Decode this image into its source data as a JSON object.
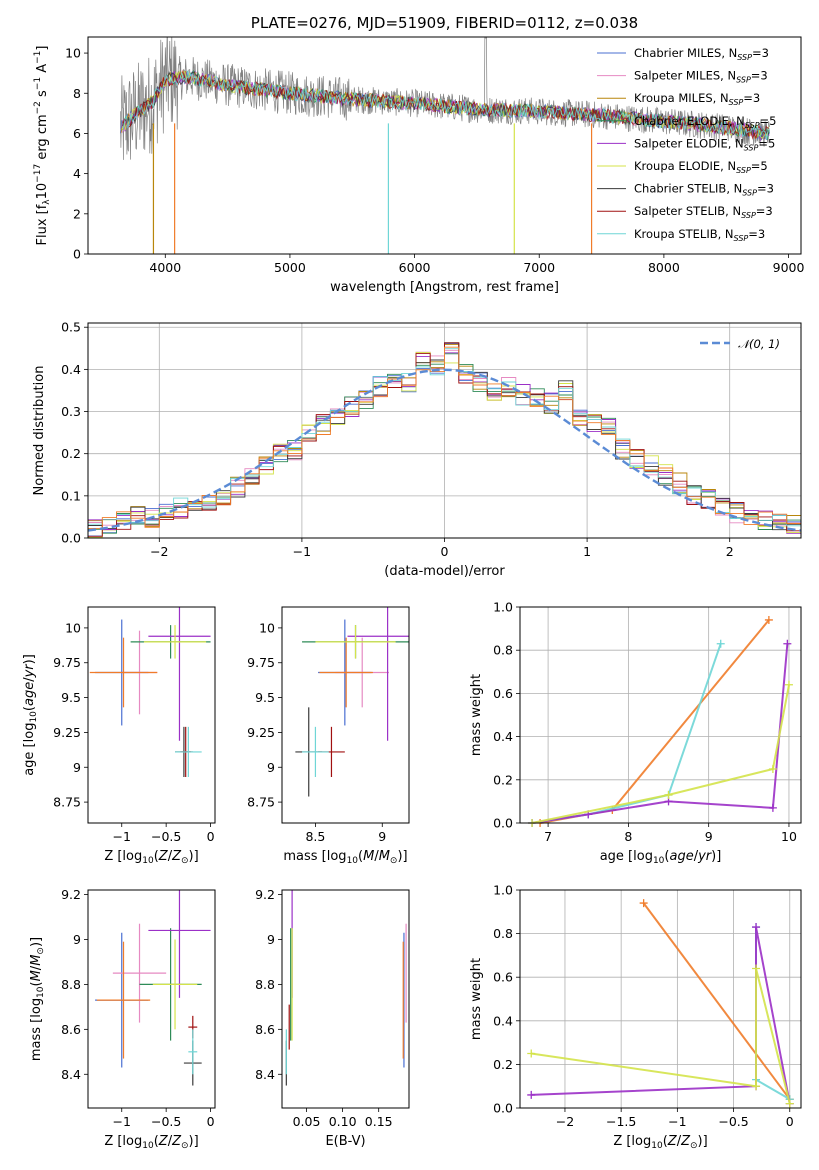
{
  "chart_data": [
    {
      "id": "spectrum",
      "type": "line",
      "title": "PLATE=0276, MJD=51909, FIBERID=0112, z=0.038",
      "xlabel": "wavelength [Angstrom, rest frame]",
      "ylabel_html": "Flux [f<tspan font-size='9' dy='3'>λ</tspan><tspan dy='-3'>10</tspan><tspan font-size='9' dy='-6'>−17</tspan><tspan dy='6'> erg cm</tspan><tspan font-size='9' dy='-6'>−2</tspan><tspan dy='6'> s</tspan><tspan font-size='9' dy='-6'>−1</tspan><tspan dy='6'> A</tspan><tspan font-size='9' dy='-6'>−1</tspan><tspan dy='6'>]</tspan>",
      "xlim": [
        3380,
        9100
      ],
      "ylim": [
        0,
        10.8
      ],
      "xticks": [
        4000,
        5000,
        6000,
        7000,
        8000,
        9000
      ],
      "yticks": [
        0,
        2,
        4,
        6,
        8,
        10
      ],
      "legend_position": "upper-right",
      "observed_color": "#808080",
      "series": [
        {
          "name": "Chabrier MILES",
          "nssp": "3",
          "color": "#4a6fd2"
        },
        {
          "name": "Salpeter MILES",
          "nssp": "3",
          "color": "#e68ac2"
        },
        {
          "name": "Kroupa MILES",
          "nssp": "3",
          "color": "#b8860b"
        },
        {
          "name": "Chabrier ELODIE",
          "nssp": "5",
          "color": "#2e8b57"
        },
        {
          "name": "Salpeter ELODIE",
          "nssp": "5",
          "color": "#9b30c7"
        },
        {
          "name": "Kroupa ELODIE",
          "nssp": "5",
          "color": "#d4e34a"
        },
        {
          "name": "Chabrier STELIB",
          "nssp": "3",
          "color": "#3a3a3a"
        },
        {
          "name": "Salpeter STELIB",
          "nssp": "3",
          "color": "#a01010"
        },
        {
          "name": "Kroupa STELIB",
          "nssp": "3",
          "color": "#6fd6d6"
        }
      ],
      "model_continuum": {
        "x": [
          3650,
          3750,
          3900,
          4000,
          4200,
          4500,
          5000,
          5500,
          6000,
          6500,
          7000,
          7500,
          8000,
          8500,
          8800
        ],
        "y": [
          6.3,
          6.9,
          7.6,
          8.7,
          8.8,
          8.4,
          8.0,
          7.7,
          7.5,
          7.2,
          7.1,
          6.9,
          6.6,
          6.3,
          6.0
        ]
      },
      "dropouts": [
        3905,
        4075,
        5790,
        6800,
        7420
      ]
    },
    {
      "id": "residuals",
      "type": "line",
      "xlabel": "(data-model)/error",
      "ylabel": "Normed distribution",
      "xlim": [
        -2.5,
        2.5
      ],
      "ylim": [
        0,
        0.51
      ],
      "xticks": [
        -2,
        -1,
        0,
        1,
        2
      ],
      "yticks": [
        0.0,
        0.1,
        0.2,
        0.3,
        0.4,
        0.5
      ],
      "grid": true,
      "legend_position": "upper-right",
      "normal_label": "𝒩(0, 1)",
      "normal_color": "#5b8bd5",
      "bins": [
        -2.5,
        -2.4,
        -2.3,
        -2.2,
        -2.1,
        -2.0,
        -1.9,
        -1.8,
        -1.7,
        -1.6,
        -1.5,
        -1.4,
        -1.3,
        -1.2,
        -1.1,
        -1.0,
        -0.9,
        -0.8,
        -0.7,
        -0.6,
        -0.5,
        -0.4,
        -0.3,
        -0.2,
        -0.1,
        0.0,
        0.1,
        0.2,
        0.3,
        0.4,
        0.5,
        0.6,
        0.7,
        0.8,
        0.9,
        1.0,
        1.1,
        1.2,
        1.3,
        1.4,
        1.5,
        1.6,
        1.7,
        1.8,
        1.9,
        2.0,
        2.1,
        2.2,
        2.3,
        2.4
      ],
      "hist_values": [
        0.02,
        0.03,
        0.04,
        0.05,
        0.05,
        0.06,
        0.07,
        0.08,
        0.09,
        0.1,
        0.12,
        0.15,
        0.17,
        0.2,
        0.21,
        0.25,
        0.27,
        0.29,
        0.31,
        0.33,
        0.36,
        0.38,
        0.37,
        0.42,
        0.41,
        0.44,
        0.39,
        0.37,
        0.35,
        0.36,
        0.34,
        0.33,
        0.32,
        0.35,
        0.29,
        0.27,
        0.26,
        0.21,
        0.19,
        0.17,
        0.15,
        0.13,
        0.1,
        0.09,
        0.07,
        0.06,
        0.05,
        0.04,
        0.04,
        0.03
      ]
    },
    {
      "id": "age-vs-Z",
      "type": "scatter",
      "xlabel_html": "Z [log<tspan font-size='9' dy='3'>10</tspan><tspan dy='-3'>(</tspan><tspan font-style='italic'>Z</tspan>/<tspan font-style='italic'>Z</tspan><tspan font-size='9' dy='3'>⊙</tspan><tspan dy='-3'>)]</tspan>",
      "ylabel_html": "age  [log<tspan font-size='9' dy='3'>10</tspan><tspan dy='-3'>(</tspan><tspan font-style='italic'>age</tspan>/<tspan font-style='italic'>yr</tspan>)]",
      "xlim": [
        -1.38,
        0.05
      ],
      "ylim": [
        8.6,
        10.15
      ],
      "xticks": [
        -1.0,
        -0.5,
        0.0
      ],
      "yticks": [
        8.75,
        9.0,
        9.25,
        9.5,
        9.75,
        10.0
      ],
      "points": [
        {
          "x": -1.0,
          "y": 9.68,
          "xerr": 0.3,
          "yerr": 0.38,
          "color": "#4a6fd2"
        },
        {
          "x": -0.8,
          "y": 9.68,
          "xerr": 0.2,
          "yerr": 0.3,
          "color": "#e68ac2"
        },
        {
          "x": -0.98,
          "y": 9.68,
          "xerr": 0.38,
          "yerr": 0.25,
          "color": "#f07c2a"
        },
        {
          "x": -0.45,
          "y": 9.9,
          "xerr": 0.45,
          "yerr": 0.12,
          "color": "#2e8b57"
        },
        {
          "x": -0.35,
          "y": 9.94,
          "xerr": 0.35,
          "yerr": 0.75,
          "color": "#9b30c7"
        },
        {
          "x": -0.4,
          "y": 9.9,
          "xerr": 0.35,
          "yerr": 0.12,
          "color": "#d4e34a"
        },
        {
          "x": -0.3,
          "y": 9.11,
          "xerr": 0.1,
          "yerr": 0.18,
          "color": "#3a3a3a"
        },
        {
          "x": -0.28,
          "y": 9.11,
          "xerr": 0.06,
          "yerr": 0.18,
          "color": "#a01010"
        },
        {
          "x": -0.25,
          "y": 9.11,
          "xerr": 0.15,
          "yerr": 0.18,
          "color": "#6fd6d6"
        }
      ]
    },
    {
      "id": "age-vs-mass",
      "type": "scatter",
      "xlabel_html": "mass [log<tspan font-size='9' dy='3'>10</tspan><tspan dy='-3'>(</tspan><tspan font-style='italic'>M</tspan>/<tspan font-style='italic'>M</tspan><tspan font-size='9' dy='3'>⊙</tspan><tspan dy='-3'>)]</tspan>",
      "xlim": [
        8.25,
        9.2
      ],
      "ylim": [
        8.6,
        10.15
      ],
      "xticks": [
        8.5,
        9.0
      ],
      "yticks": [
        8.75,
        9.0,
        9.25,
        9.5,
        9.75,
        10.0
      ],
      "points": [
        {
          "x": 8.72,
          "y": 9.68,
          "xerr": 0.2,
          "yerr": 0.38,
          "color": "#4a6fd2"
        },
        {
          "x": 8.85,
          "y": 9.68,
          "xerr": 0.2,
          "yerr": 0.25,
          "color": "#e68ac2"
        },
        {
          "x": 8.73,
          "y": 9.68,
          "xerr": 0.2,
          "yerr": 0.25,
          "color": "#f07c2a"
        },
        {
          "x": 8.8,
          "y": 9.9,
          "xerr": 0.4,
          "yerr": 0.12,
          "color": "#2e8b57"
        },
        {
          "x": 9.04,
          "y": 9.94,
          "xerr": 0.3,
          "yerr": 0.75,
          "color": "#9b30c7"
        },
        {
          "x": 8.8,
          "y": 9.9,
          "xerr": 0.3,
          "yerr": 0.12,
          "color": "#d4e34a"
        },
        {
          "x": 8.45,
          "y": 9.11,
          "xerr": 0.1,
          "yerr": 0.32,
          "color": "#3a3a3a"
        },
        {
          "x": 8.62,
          "y": 9.11,
          "xerr": 0.1,
          "yerr": 0.18,
          "color": "#a01010"
        },
        {
          "x": 8.5,
          "y": 9.11,
          "xerr": 0.1,
          "yerr": 0.18,
          "color": "#6fd6d6"
        }
      ]
    },
    {
      "id": "massweight-vs-age",
      "type": "line",
      "xlabel_html": "age  [log<tspan font-size='9' dy='3'>10</tspan><tspan dy='-3'>(</tspan><tspan font-style='italic'>age</tspan>/<tspan font-style='italic'>yr</tspan>)]",
      "ylabel": "mass weight",
      "xlim": [
        6.65,
        10.15
      ],
      "ylim": [
        0,
        1.0
      ],
      "xticks": [
        7,
        8,
        9,
        10
      ],
      "yticks": [
        0.0,
        0.2,
        0.4,
        0.6,
        0.8,
        1.0
      ],
      "grid": true,
      "series": [
        {
          "x": [
            6.9,
            7.8,
            9.75
          ],
          "y": [
            0.0,
            0.06,
            0.94
          ],
          "color": "#f07c2a"
        },
        {
          "x": [
            6.8,
            7.5,
            8.5,
            9.15
          ],
          "y": [
            0.0,
            0.04,
            0.13,
            0.83
          ],
          "color": "#6fd6d6"
        },
        {
          "x": [
            6.8,
            7.5,
            8.5,
            9.8,
            9.98
          ],
          "y": [
            0.0,
            0.04,
            0.1,
            0.07,
            0.83
          ],
          "color": "#9b30c7"
        },
        {
          "x": [
            6.8,
            8.5,
            9.8,
            10.0
          ],
          "y": [
            0.0,
            0.13,
            0.25,
            0.64
          ],
          "color": "#d4e34a"
        }
      ]
    },
    {
      "id": "mass-vs-Z",
      "type": "scatter",
      "xlabel_html": "Z [log<tspan font-size='9' dy='3'>10</tspan><tspan dy='-3'>(</tspan><tspan font-style='italic'>Z</tspan>/<tspan font-style='italic'>Z</tspan><tspan font-size='9' dy='3'>⊙</tspan><tspan dy='-3'>)]</tspan>",
      "ylabel_html": "mass [log<tspan font-size='9' dy='3'>10</tspan><tspan dy='-3'>(</tspan><tspan font-style='italic'>M</tspan>/<tspan font-style='italic'>M</tspan><tspan font-size='9' dy='3'>⊙</tspan><tspan dy='-3'>)]</tspan>",
      "xlim": [
        -1.38,
        0.05
      ],
      "ylim": [
        8.25,
        9.22
      ],
      "xticks": [
        -1.0,
        -0.5,
        0.0
      ],
      "yticks": [
        8.4,
        8.6,
        8.8,
        9.0,
        9.2
      ],
      "points": [
        {
          "x": -1.0,
          "y": 8.73,
          "xerr": 0.3,
          "yerr": 0.3,
          "color": "#4a6fd2"
        },
        {
          "x": -0.8,
          "y": 8.85,
          "xerr": 0.3,
          "yerr": 0.22,
          "color": "#e68ac2"
        },
        {
          "x": -0.98,
          "y": 8.73,
          "xerr": 0.3,
          "yerr": 0.26,
          "color": "#f07c2a"
        },
        {
          "x": -0.45,
          "y": 8.8,
          "xerr": 0.35,
          "yerr": 0.25,
          "color": "#2e8b57"
        },
        {
          "x": -0.35,
          "y": 9.04,
          "xerr": 0.35,
          "yerr": 0.3,
          "color": "#9b30c7"
        },
        {
          "x": -0.4,
          "y": 8.8,
          "xerr": 0.25,
          "yerr": 0.2,
          "color": "#d4e34a"
        },
        {
          "x": -0.2,
          "y": 8.45,
          "xerr": 0.1,
          "yerr": 0.1,
          "color": "#3a3a3a"
        },
        {
          "x": -0.2,
          "y": 8.61,
          "xerr": 0.05,
          "yerr": 0.05,
          "color": "#a01010"
        },
        {
          "x": -0.2,
          "y": 8.5,
          "xerr": 0.05,
          "yerr": 0.1,
          "color": "#6fd6d6"
        }
      ]
    },
    {
      "id": "mass-vs-ebv",
      "type": "scatter",
      "xlabel": "E(B-V)",
      "xlim": [
        0.016,
        0.192
      ],
      "ylim": [
        8.25,
        9.22
      ],
      "xticks": [
        0.05,
        0.1,
        0.15
      ],
      "xtick_labels": [
        "0.05",
        "0.10",
        "0.15"
      ],
      "yticks": [
        8.4,
        8.6,
        8.8,
        9.0,
        9.2
      ],
      "points": [
        {
          "x": 0.185,
          "y": 8.73,
          "yerr": 0.3,
          "color": "#4a6fd2"
        },
        {
          "x": 0.188,
          "y": 8.85,
          "yerr": 0.22,
          "color": "#e68ac2"
        },
        {
          "x": 0.184,
          "y": 8.73,
          "yerr": 0.26,
          "color": "#f07c2a"
        },
        {
          "x": 0.028,
          "y": 8.8,
          "yerr": 0.25,
          "color": "#2e8b57"
        },
        {
          "x": 0.03,
          "y": 9.04,
          "yerr": 0.3,
          "color": "#9b30c7"
        },
        {
          "x": 0.03,
          "y": 8.8,
          "yerr": 0.25,
          "color": "#d4e34a"
        },
        {
          "x": 0.022,
          "y": 8.45,
          "yerr": 0.1,
          "color": "#3a3a3a"
        },
        {
          "x": 0.026,
          "y": 8.61,
          "yerr": 0.1,
          "color": "#a01010"
        },
        {
          "x": 0.022,
          "y": 8.5,
          "yerr": 0.1,
          "color": "#6fd6d6"
        }
      ]
    },
    {
      "id": "massweight-vs-Z",
      "type": "line",
      "xlabel_html": "Z [log<tspan font-size='9' dy='3'>10</tspan><tspan dy='-3'>(</tspan><tspan font-style='italic'>Z</tspan>/<tspan font-style='italic'>Z</tspan><tspan font-size='9' dy='3'>⊙</tspan><tspan dy='-3'>)]</tspan>",
      "ylabel": "mass weight",
      "xlim": [
        -2.4,
        0.1
      ],
      "ylim": [
        0,
        1.0
      ],
      "xticks": [
        -2.0,
        -1.5,
        -1.0,
        -0.5,
        0.0
      ],
      "yticks": [
        0.0,
        0.2,
        0.4,
        0.6,
        0.8,
        1.0
      ],
      "grid": true,
      "series": [
        {
          "x": [
            -1.3,
            0.0
          ],
          "y": [
            0.94,
            0.04
          ],
          "color": "#f07c2a"
        },
        {
          "x": [
            -0.3,
            -0.3,
            0.0
          ],
          "y": [
            0.83,
            0.13,
            0.04
          ],
          "color": "#6fd6d6"
        },
        {
          "x": [
            -2.3,
            -0.3,
            -0.3,
            0.0
          ],
          "y": [
            0.06,
            0.1,
            0.83,
            0.02
          ],
          "color": "#9b30c7"
        },
        {
          "x": [
            -2.3,
            -0.3,
            -0.3,
            0.0
          ],
          "y": [
            0.25,
            0.1,
            0.64,
            0.02
          ],
          "color": "#d4e34a"
        }
      ]
    }
  ]
}
